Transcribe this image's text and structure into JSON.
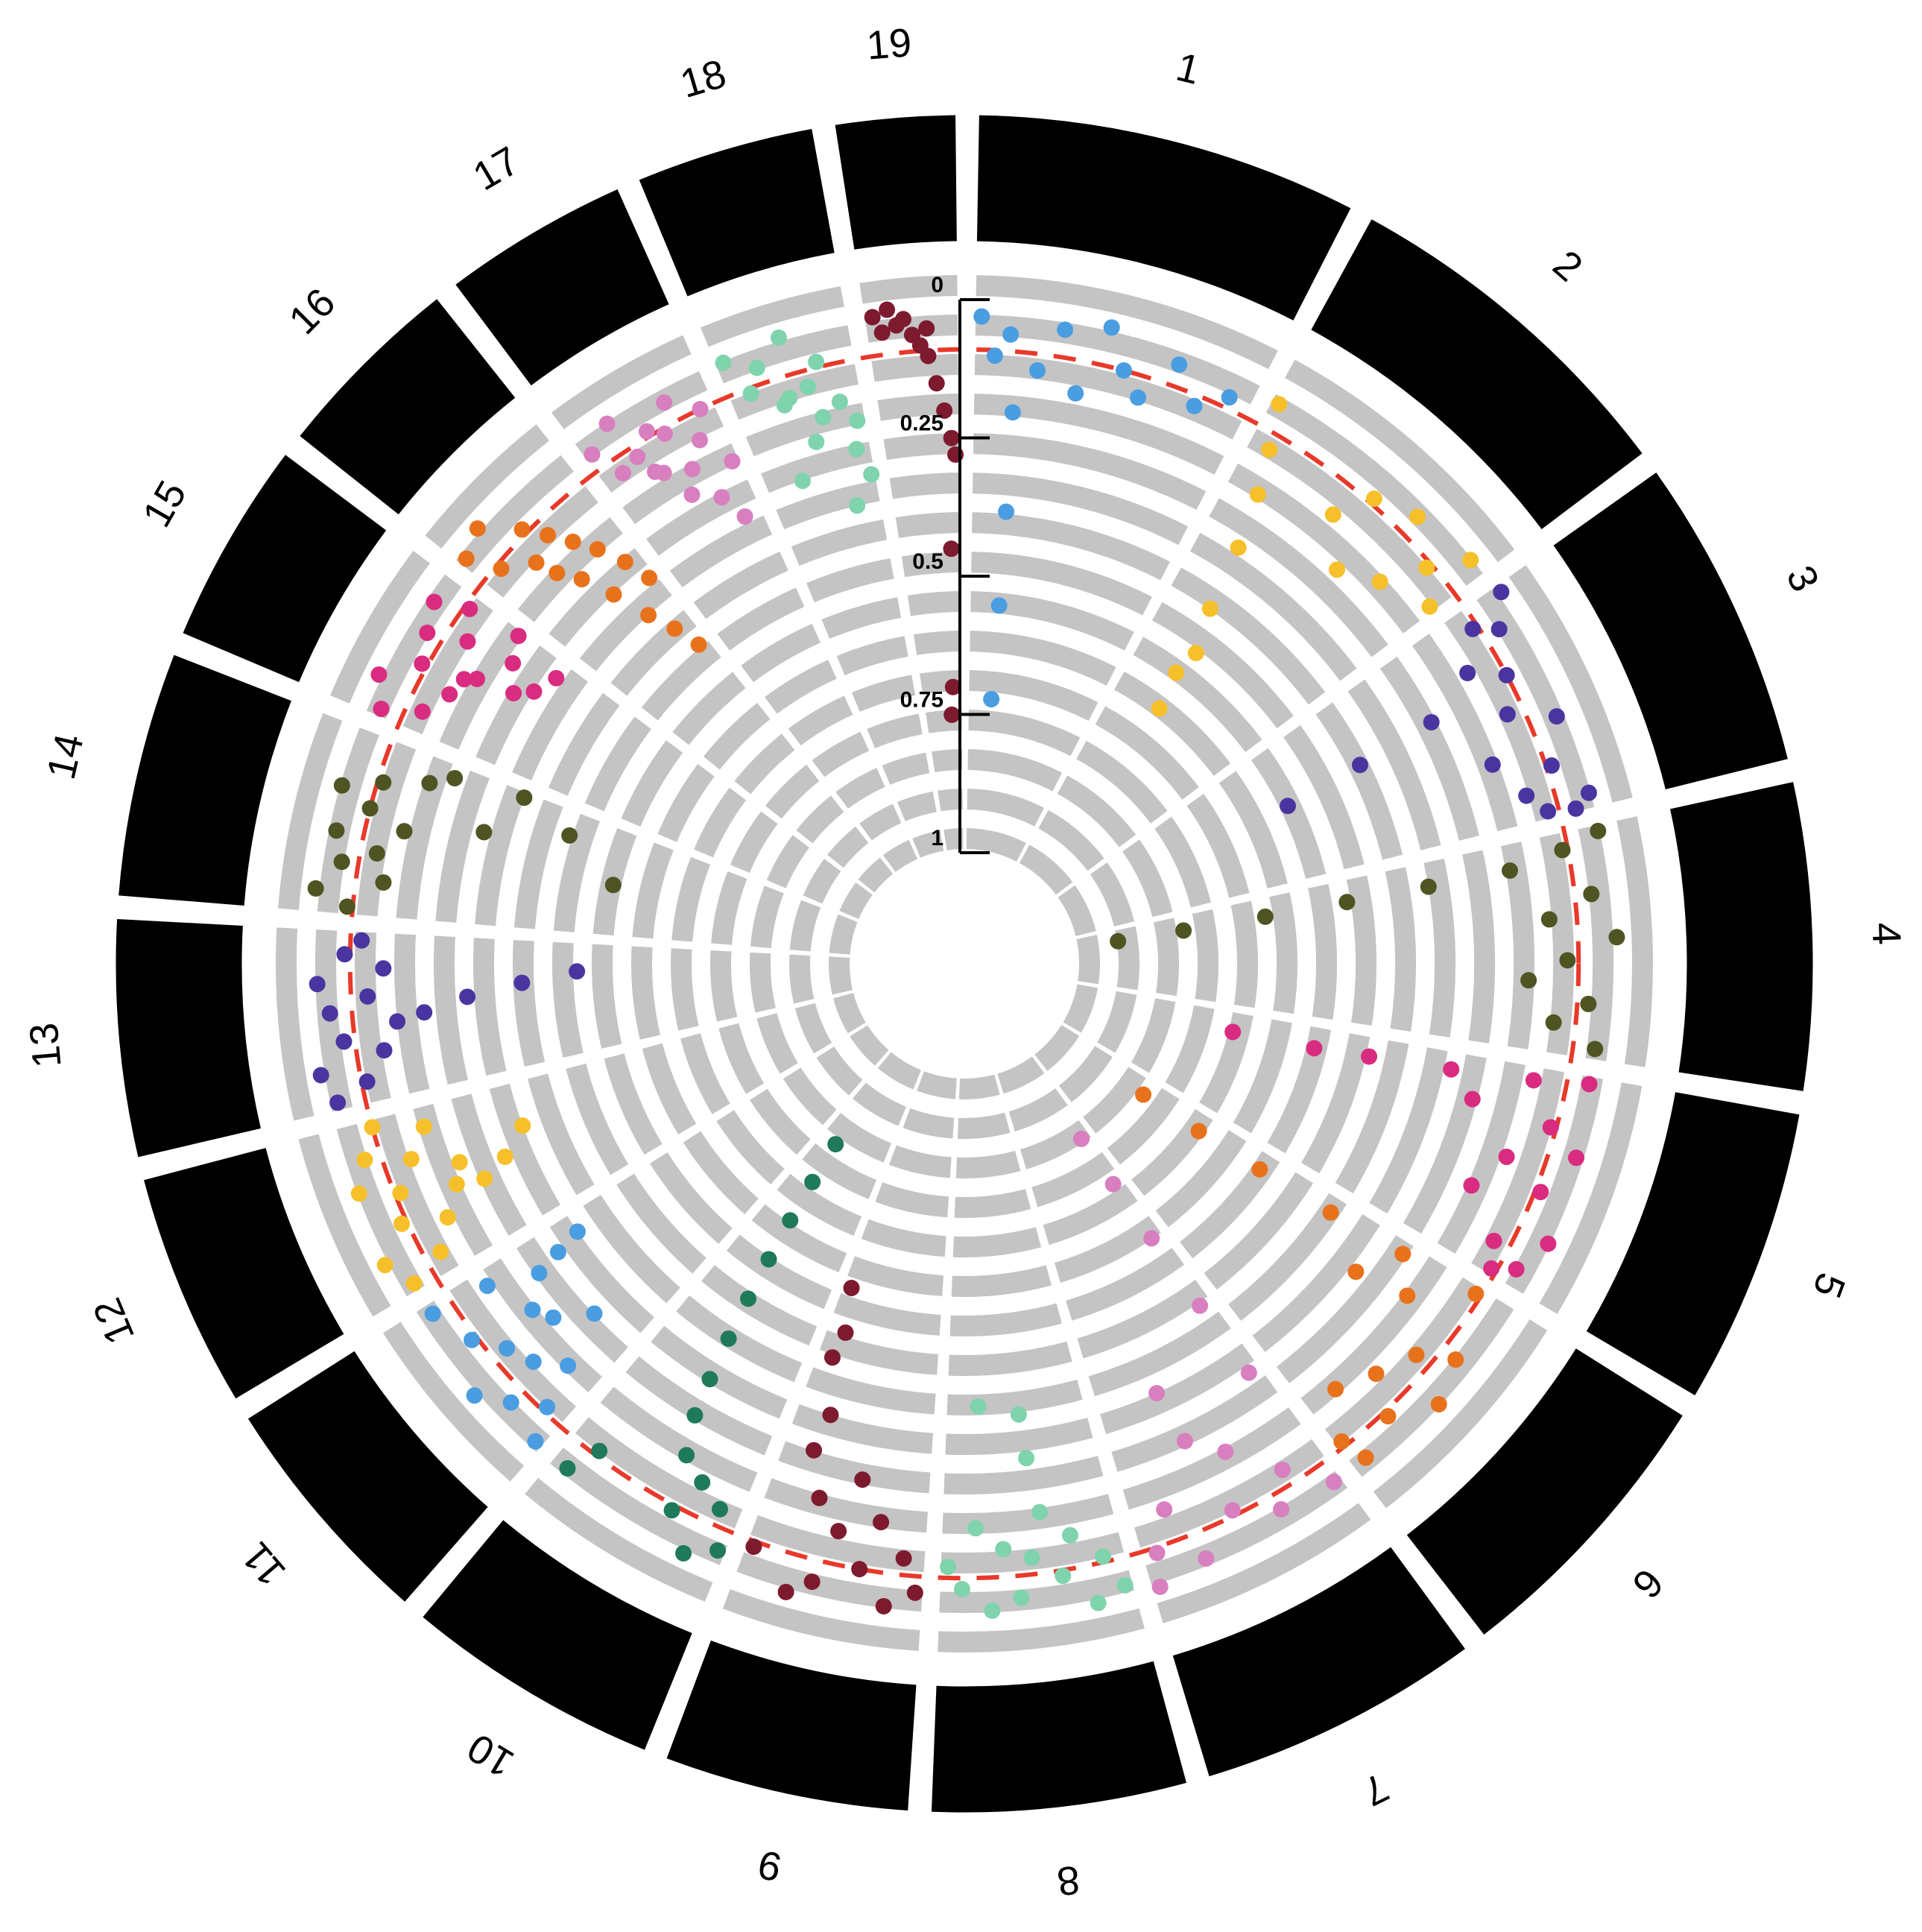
{
  "chart_data": {
    "type": "circular-manhattan",
    "categories": [
      "1",
      "2",
      "3",
      "4",
      "5",
      "6",
      "7",
      "8",
      "9",
      "10",
      "11",
      "12",
      "13",
      "14",
      "15",
      "16",
      "17",
      "18",
      "19"
    ],
    "lengths": [
      195,
      182,
      160,
      157,
      152,
      150,
      145,
      130,
      125,
      131,
      122,
      120,
      121,
      125,
      104,
      98,
      95,
      91,
      61
    ],
    "ylim": [
      1,
      0
    ],
    "yticks": [
      0,
      0.25,
      0.5,
      0.75,
      1
    ],
    "threshold": 0.09,
    "threshold_color": "#e8392a",
    "series": [
      {
        "color": "#4a9de0",
        "x": [
          4,
          14,
          24,
          30,
          32,
          34,
          36,
          45,
          60,
          75,
          90,
          105,
          120,
          140,
          160,
          180
        ],
        "values": [
          0.03,
          0.1,
          0.06,
          0.2,
          0.38,
          0.55,
          0.72,
          0.12,
          0.04,
          0.15,
          0.02,
          0.09,
          0.13,
          0.05,
          0.11,
          0.07
        ]
      },
      {
        "color": "#f6c02a",
        "x": [
          5,
          15,
          25,
          35,
          45,
          55,
          65,
          80,
          95,
          110,
          125,
          140,
          155,
          170,
          178,
          60
        ],
        "values": [
          0.04,
          0.12,
          0.2,
          0.3,
          0.42,
          0.55,
          0.62,
          0.15,
          0.08,
          0.22,
          0.05,
          0.18,
          0.1,
          0.03,
          0.14,
          0.5
        ]
      },
      {
        "color": "#4a35a0",
        "x": [
          5,
          15,
          25,
          40,
          55,
          60,
          65,
          70,
          80,
          95,
          110,
          125,
          140,
          150,
          155,
          158
        ],
        "values": [
          0.02,
          0.1,
          0.06,
          0.15,
          0.09,
          0.25,
          0.4,
          0.55,
          0.12,
          0.04,
          0.18,
          0.08,
          0.14,
          0.03,
          0.11,
          0.06
        ]
      },
      {
        "color": "#4f5423",
        "x": [
          4,
          12,
          20,
          22,
          24,
          26,
          28,
          30,
          45,
          60,
          75,
          90,
          105,
          120,
          135,
          150
        ],
        "values": [
          0.03,
          0.1,
          0.2,
          0.35,
          0.5,
          0.65,
          0.8,
          0.92,
          0.06,
          0.14,
          0.02,
          0.11,
          0.18,
          0.07,
          0.13,
          0.05
        ]
      },
      {
        "color": "#d92c80",
        "x": [
          5,
          10,
          15,
          20,
          25,
          30,
          40,
          55,
          70,
          85,
          100,
          115,
          130,
          140,
          148,
          35
        ],
        "values": [
          0.05,
          0.15,
          0.3,
          0.45,
          0.55,
          0.7,
          0.1,
          0.04,
          0.16,
          0.08,
          0.2,
          0.03,
          0.12,
          0.06,
          0.1,
          0.25
        ]
      },
      {
        "color": "#e8721c",
        "x": [
          5,
          10,
          15,
          20,
          25,
          30,
          35,
          50,
          65,
          80,
          95,
          110,
          125,
          140,
          146,
          45
        ],
        "values": [
          0.1,
          0.25,
          0.4,
          0.55,
          0.68,
          0.8,
          0.2,
          0.06,
          0.12,
          0.03,
          0.15,
          0.08,
          0.18,
          0.05,
          0.1,
          0.3
        ]
      },
      {
        "color": "#d87fc0",
        "x": [
          5,
          10,
          12,
          14,
          16,
          18,
          30,
          45,
          60,
          75,
          90,
          105,
          120,
          135,
          140,
          85
        ],
        "values": [
          0.05,
          0.3,
          0.45,
          0.6,
          0.72,
          0.82,
          0.12,
          0.06,
          0.2,
          0.1,
          0.35,
          0.04,
          0.15,
          0.08,
          0.02,
          0.25
        ]
      },
      {
        "color": "#7fd3ad",
        "x": [
          5,
          15,
          25,
          35,
          45,
          55,
          60,
          62,
          65,
          75,
          85,
          95,
          105,
          115,
          125,
          100
        ],
        "values": [
          0.04,
          0.1,
          0.02,
          0.15,
          0.08,
          0.2,
          0.3,
          0.38,
          0.12,
          0.05,
          0.14,
          0.03,
          0.18,
          0.07,
          0.11,
          0.4
        ]
      },
      {
        "color": "#7d1a2e",
        "x": [
          5,
          15,
          25,
          35,
          45,
          55,
          65,
          75,
          85,
          95,
          105,
          115,
          120,
          100,
          110,
          90
        ],
        "values": [
          0.06,
          0.12,
          0.03,
          0.18,
          0.09,
          0.25,
          0.15,
          0.05,
          0.2,
          0.35,
          0.5,
          0.58,
          0.08,
          0.28,
          0.45,
          0.02
        ]
      },
      {
        "color": "#1f7a5a",
        "x": [
          5,
          15,
          25,
          35,
          45,
          55,
          65,
          70,
          75,
          80,
          85,
          90,
          95,
          100,
          110,
          120
        ],
        "values": [
          0.05,
          0.12,
          0.02,
          0.15,
          0.08,
          0.18,
          0.25,
          0.32,
          0.4,
          0.48,
          0.56,
          0.64,
          0.72,
          0.8,
          0.1,
          0.04
        ]
      },
      {
        "color": "#4a9de0",
        "x": [
          5,
          15,
          25,
          35,
          45,
          55,
          65,
          75,
          85,
          95,
          105,
          115,
          100,
          110,
          60,
          40
        ],
        "values": [
          0.04,
          0.1,
          0.18,
          0.06,
          0.14,
          0.02,
          0.12,
          0.2,
          0.08,
          0.25,
          0.35,
          0.05,
          0.3,
          0.16,
          0.22,
          0.28
        ]
      },
      {
        "color": "#f6c02a",
        "x": [
          5,
          15,
          25,
          35,
          45,
          55,
          65,
          75,
          85,
          95,
          105,
          115,
          50,
          60,
          70,
          80
        ],
        "values": [
          0.05,
          0.12,
          0.02,
          0.16,
          0.08,
          0.2,
          0.1,
          0.03,
          0.14,
          0.06,
          0.18,
          0.09,
          0.25,
          0.3,
          0.22,
          0.35
        ]
      },
      {
        "color": "#4a35a0",
        "x": [
          5,
          15,
          25,
          35,
          45,
          55,
          65,
          75,
          85,
          95,
          105,
          115,
          70,
          80,
          60,
          90
        ],
        "values": [
          0.04,
          0.1,
          0.02,
          0.14,
          0.07,
          0.17,
          0.05,
          0.12,
          0.03,
          0.15,
          0.08,
          0.11,
          0.3,
          0.4,
          0.22,
          0.5
        ]
      },
      {
        "color": "#4f5423",
        "x": [
          5,
          15,
          25,
          35,
          45,
          55,
          65,
          75,
          85,
          95,
          105,
          115,
          120,
          100,
          80,
          60
        ],
        "values": [
          0.08,
          0.02,
          0.14,
          0.06,
          0.12,
          0.04,
          0.16,
          0.09,
          0.03,
          0.1,
          0.18,
          0.22,
          0.35,
          0.45,
          0.3,
          0.55
        ]
      },
      {
        "color": "#d92c80",
        "x": [
          5,
          15,
          25,
          35,
          45,
          55,
          65,
          75,
          85,
          95,
          100,
          60,
          70,
          80,
          90,
          50
        ],
        "values": [
          0.05,
          0.12,
          0.02,
          0.15,
          0.08,
          0.18,
          0.06,
          0.13,
          0.04,
          0.1,
          0.2,
          0.25,
          0.28,
          0.22,
          0.3,
          0.16
        ]
      },
      {
        "color": "#e8721c",
        "x": [
          5,
          15,
          25,
          35,
          45,
          55,
          65,
          75,
          85,
          92,
          70,
          80,
          88,
          60,
          50,
          40
        ],
        "values": [
          0.04,
          0.1,
          0.02,
          0.14,
          0.08,
          0.12,
          0.16,
          0.2,
          0.25,
          0.3,
          0.35,
          0.4,
          0.45,
          0.28,
          0.22,
          0.18
        ]
      },
      {
        "color": "#d87fc0",
        "x": [
          5,
          15,
          25,
          35,
          45,
          55,
          65,
          75,
          85,
          90,
          70,
          80,
          60,
          50,
          40,
          30
        ],
        "values": [
          0.06,
          0.12,
          0.03,
          0.15,
          0.08,
          0.1,
          0.05,
          0.14,
          0.09,
          0.2,
          0.25,
          0.3,
          0.18,
          0.22,
          0.16,
          0.11
        ]
      },
      {
        "color": "#7fd3ad",
        "x": [
          5,
          15,
          25,
          35,
          45,
          55,
          65,
          75,
          85,
          88,
          80,
          70,
          60,
          50,
          40,
          30
        ],
        "values": [
          0.03,
          0.1,
          0.06,
          0.14,
          0.02,
          0.12,
          0.08,
          0.16,
          0.2,
          0.3,
          0.25,
          0.35,
          0.18,
          0.22,
          0.13,
          0.28
        ]
      },
      {
        "color": "#7d1a2e",
        "x": [
          5,
          10,
          15,
          20,
          25,
          30,
          35,
          40,
          45,
          50,
          55,
          58,
          52,
          48,
          44,
          40
        ],
        "values": [
          0.02,
          0.05,
          0.01,
          0.04,
          0.03,
          0.06,
          0.08,
          0.1,
          0.15,
          0.2,
          0.25,
          0.28,
          0.45,
          0.7,
          0.75,
          0.05
        ]
      }
    ]
  }
}
